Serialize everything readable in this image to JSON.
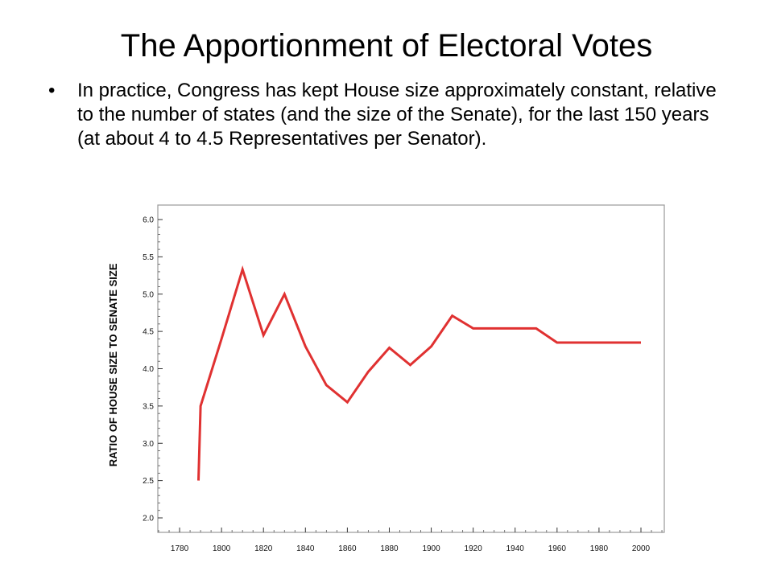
{
  "slide": {
    "title": "The Apportionment of Electoral Votes",
    "bullet_marker": "•",
    "bullet": "In practice, Congress has kept House size approximately constant, relative to the number of states (and the size of the Senate), for the last 150 years (at about 4 to 4.5 Representatives per Senator)."
  },
  "chart_data": {
    "type": "line",
    "title": "",
    "xlabel": "",
    "ylabel": "RATIO OF HOUSE SIZE TO SENATE SIZE",
    "xlim": [
      1770,
      2010
    ],
    "ylim": [
      1.9,
      6.1
    ],
    "xticks": [
      1780,
      1800,
      1820,
      1840,
      1860,
      1880,
      1900,
      1920,
      1940,
      1960,
      1980,
      2000
    ],
    "xtick_labels": [
      "1780",
      "1800",
      "1820",
      "1840",
      "1860",
      "1880",
      "1900",
      "1920",
      "1940",
      "1960",
      "1980",
      "2000"
    ],
    "yticks": [
      2.0,
      2.5,
      3.0,
      3.5,
      4.0,
      4.5,
      5.0,
      5.5,
      6.0
    ],
    "ytick_labels": [
      "2.0",
      "2.5",
      "3.0",
      "3.5",
      "4.0",
      "4.5",
      "5.0",
      "5.5",
      "6.0"
    ],
    "grid": false,
    "line_color": "#e03131",
    "series": [
      {
        "name": "",
        "points": [
          [
            1789,
            2.5
          ],
          [
            1790,
            3.5
          ],
          [
            1800,
            4.4
          ],
          [
            1810,
            5.33
          ],
          [
            1820,
            4.45
          ],
          [
            1830,
            5.0
          ],
          [
            1840,
            4.3
          ],
          [
            1850,
            3.78
          ],
          [
            1860,
            3.55
          ],
          [
            1870,
            3.96
          ],
          [
            1880,
            4.28
          ],
          [
            1890,
            4.05
          ],
          [
            1900,
            4.3
          ],
          [
            1910,
            4.71
          ],
          [
            1920,
            4.54
          ],
          [
            1930,
            4.54
          ],
          [
            1940,
            4.54
          ],
          [
            1950,
            4.54
          ],
          [
            1960,
            4.35
          ],
          [
            1970,
            4.35
          ],
          [
            1980,
            4.35
          ],
          [
            1990,
            4.35
          ],
          [
            2000,
            4.35
          ]
        ]
      }
    ]
  }
}
